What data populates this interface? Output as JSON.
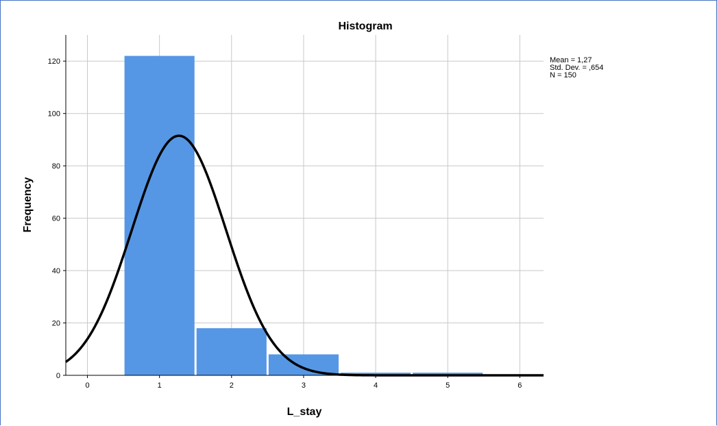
{
  "chart_data": {
    "type": "bar",
    "title": "Histogram",
    "xlabel": "L_stay",
    "ylabel": "Frequency",
    "bins": [
      {
        "center": 1,
        "value": 122
      },
      {
        "center": 2,
        "value": 18
      },
      {
        "center": 3,
        "value": 8
      },
      {
        "center": 4,
        "value": 1
      },
      {
        "center": 5,
        "value": 1
      }
    ],
    "bin_width": 1,
    "xlim": [
      -0.3,
      6.33
    ],
    "ylim": [
      0,
      130
    ],
    "xticks": [
      "0",
      "1",
      "2",
      "3",
      "4",
      "5",
      "6"
    ],
    "yticks": [
      "0",
      "20",
      "40",
      "60",
      "80",
      "100",
      "120"
    ],
    "grid": true,
    "normal_curve": {
      "mean": 1.27,
      "std_dev": 0.654,
      "n": 150
    },
    "stats": {
      "mean": "Mean = 1,27",
      "std_dev": "Std. Dev. = ,654",
      "n": "N = 150"
    },
    "colors": {
      "bar": "#5597e4",
      "curve": "#000000",
      "grid": "#c8c8c8"
    }
  }
}
